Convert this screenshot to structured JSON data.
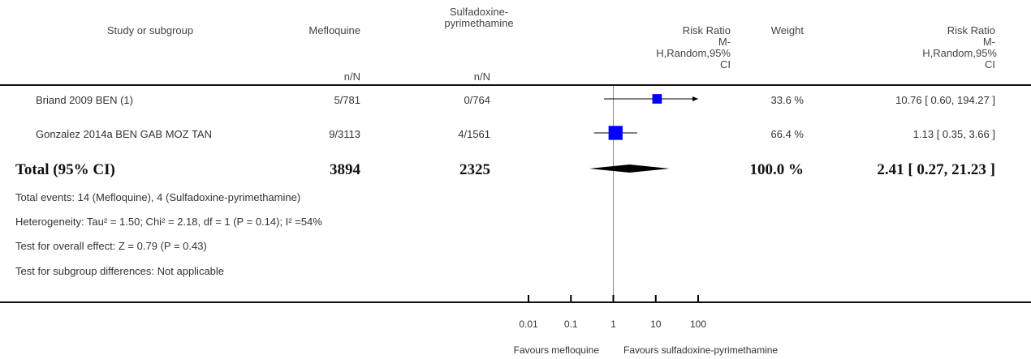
{
  "header": {
    "study": "Study or subgroup",
    "exp_name": "Mefloquine",
    "ctl_name_l1": "Sulfadoxine-",
    "ctl_name_l2": "pyrimethamine",
    "exp_sub": "n/N",
    "ctl_sub": "n/N",
    "rr_plot_l1": "Risk Ratio",
    "rr_plot_l2": "M-",
    "rr_plot_l3": "H,Random,95%",
    "rr_plot_l4": "CI",
    "weight": "Weight",
    "rr_l1": "Risk Ratio",
    "rr_l2": "M-",
    "rr_l3": "H,Random,95%",
    "rr_l4": "CI"
  },
  "studies": [
    {
      "name": "Briand 2009 BEN (1)",
      "exp": "5/781",
      "ctl": "0/764",
      "weight": "33.6 %",
      "rr_text": "10.76 [ 0.60, 194.27 ]"
    },
    {
      "name": "Gonzalez 2014a BEN GAB MOZ TAN",
      "exp": "9/3113",
      "ctl": "4/1561",
      "weight": "66.4 %",
      "rr_text": "1.13 [ 0.35, 3.66 ]"
    }
  ],
  "total": {
    "label": "Total (95% CI)",
    "exp": "3894",
    "ctl": "2325",
    "weight": "100.0 %",
    "rr_text": "2.41 [ 0.27, 21.23 ]"
  },
  "footer": {
    "events": "Total events: 14 (Mefloquine), 4 (Sulfadoxine-pyrimethamine)",
    "heterogeneity": "Heterogeneity: Tau² = 1.50; Chi² = 2.18, df = 1 (P = 0.14); I² =54%",
    "overall": "Test for overall effect: Z = 0.79 (P = 0.43)",
    "subgroup": "Test for subgroup differences: Not applicable"
  },
  "axis": {
    "ticks": [
      0.01,
      0.1,
      1,
      10,
      100
    ],
    "tick_labels": [
      "0.01",
      "0.1",
      "1",
      "10",
      "100"
    ],
    "favours_left": "Favours mefloquine",
    "favours_right": "Favours sulfadoxine-pyrimethamine"
  },
  "colors": {
    "marker": "#0000ff",
    "diamond": "#000000",
    "line": "#000000",
    "nullline": "#888888"
  },
  "chart_data": {
    "type": "forest",
    "scale": "log",
    "xlim": [
      0.01,
      100
    ],
    "studies": [
      {
        "name": "Briand 2009 BEN (1)",
        "rr": 10.76,
        "lower": 0.6,
        "upper": 194.27,
        "weight": 33.6,
        "arrow_right": true
      },
      {
        "name": "Gonzalez 2014a BEN GAB MOZ TAN",
        "rr": 1.13,
        "lower": 0.35,
        "upper": 3.66,
        "weight": 66.4,
        "arrow_right": false
      }
    ],
    "pooled": {
      "rr": 2.41,
      "lower": 0.27,
      "upper": 21.23
    }
  }
}
